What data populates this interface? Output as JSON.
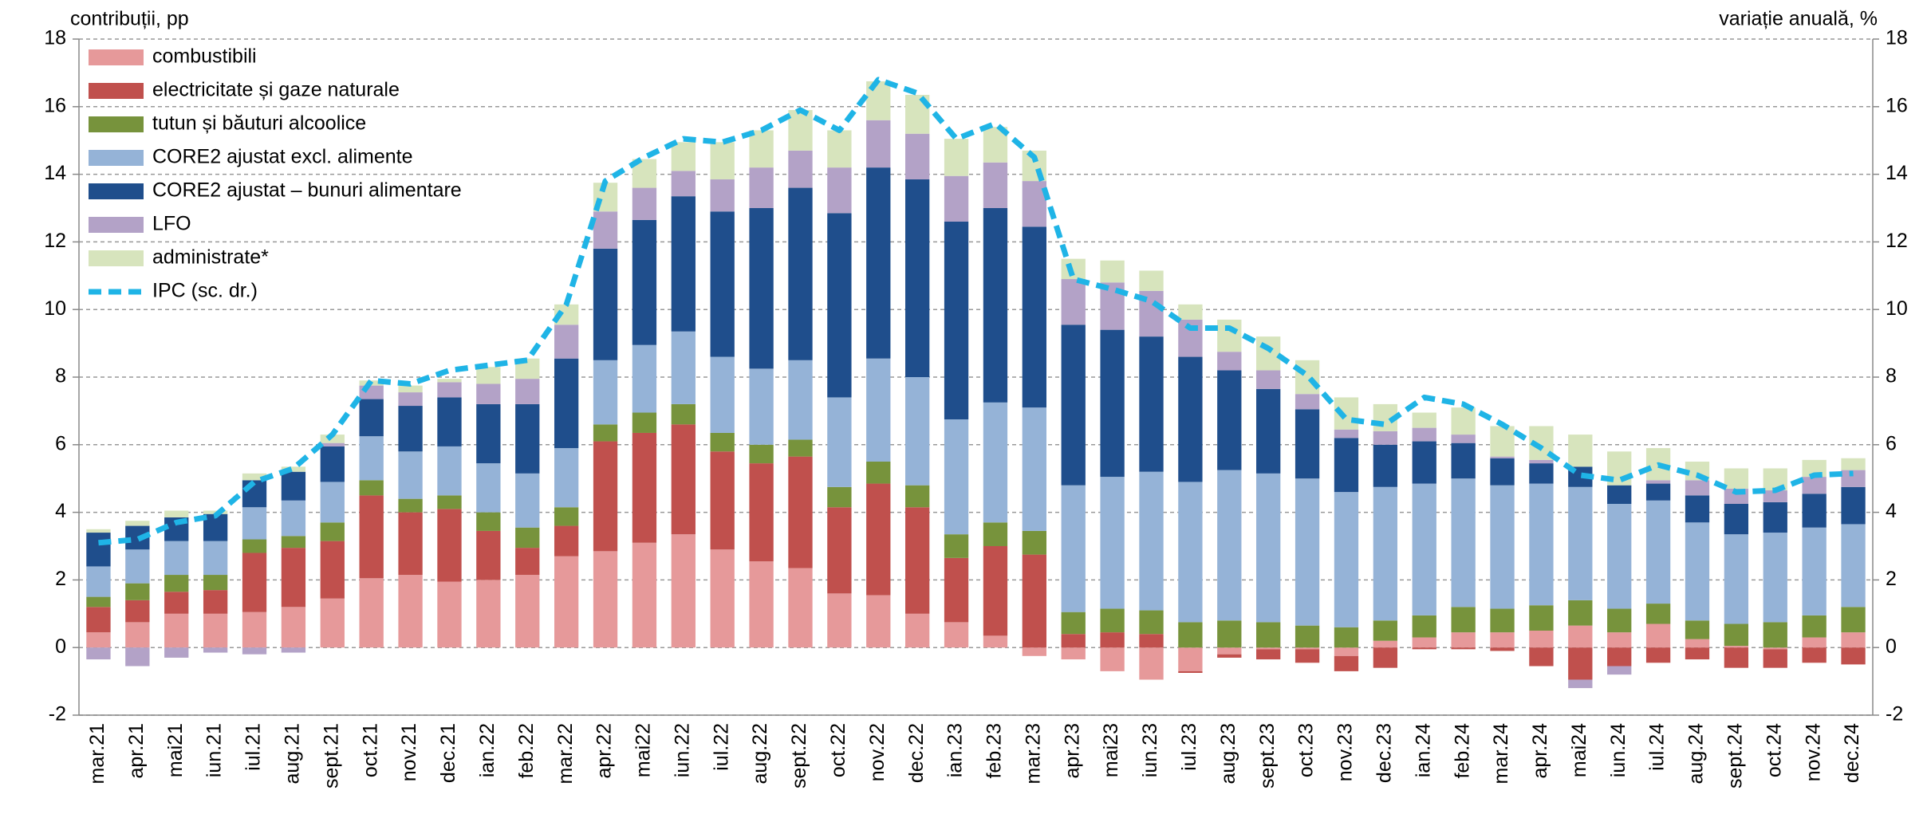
{
  "chart_data": {
    "type": "bar",
    "stacked": true,
    "y_label": "contribuții, pp",
    "y2_label": "variație anuală, %",
    "categories": [
      "mar.21",
      "apr.21",
      "mai21",
      "iun.21",
      "iul.21",
      "aug.21",
      "sept.21",
      "oct.21",
      "nov.21",
      "dec.21",
      "ian.22",
      "feb.22",
      "mar.22",
      "apr.22",
      "mai22",
      "iun.22",
      "iul.22",
      "aug.22",
      "sept.22",
      "oct.22",
      "nov.22",
      "dec.22",
      "ian.23",
      "feb.23",
      "mar.23",
      "apr.23",
      "mai23",
      "iun.23",
      "iul.23",
      "aug.23",
      "sept.23",
      "oct.23",
      "nov.23",
      "dec.23",
      "ian.24",
      "feb.24",
      "mar.24",
      "apr.24",
      "mai24",
      "iun.24",
      "iul.24",
      "aug.24",
      "sept.24",
      "oct.24",
      "nov.24",
      "dec.24"
    ],
    "series": [
      {
        "name": "combustibili",
        "color": "#e6999a",
        "values": [
          0.45,
          0.75,
          1.0,
          1.0,
          1.05,
          1.2,
          1.45,
          2.05,
          2.15,
          1.95,
          2.0,
          2.15,
          2.7,
          2.85,
          3.1,
          3.35,
          2.9,
          2.55,
          2.35,
          1.6,
          1.55,
          1.0,
          0.75,
          0.35,
          -0.25,
          -0.35,
          -0.7,
          -0.95,
          -0.7,
          -0.2,
          -0.05,
          -0.05,
          -0.25,
          0.2,
          0.3,
          0.45,
          0.45,
          0.5,
          0.65,
          0.45,
          0.7,
          0.25,
          0.05,
          -0.05,
          0.3,
          0.45
        ]
      },
      {
        "name": "electricitate și gaze naturale",
        "color": "#c0504d",
        "values": [
          0.75,
          0.65,
          0.65,
          0.7,
          1.75,
          1.75,
          1.7,
          2.45,
          1.85,
          2.15,
          1.45,
          0.8,
          0.9,
          3.25,
          3.25,
          3.25,
          2.9,
          2.9,
          3.3,
          2.55,
          3.3,
          3.15,
          1.9,
          2.65,
          2.75,
          0.4,
          0.45,
          0.4,
          -0.05,
          -0.1,
          -0.3,
          -0.4,
          -0.45,
          -0.6,
          -0.05,
          -0.05,
          -0.1,
          -0.55,
          -0.95,
          -0.55,
          -0.45,
          -0.35,
          -0.6,
          -0.55,
          -0.45,
          -0.5
        ]
      },
      {
        "name": "tutun  și băuturi alcoolice",
        "color": "#77933c",
        "values": [
          0.3,
          0.5,
          0.5,
          0.45,
          0.4,
          0.35,
          0.55,
          0.45,
          0.4,
          0.4,
          0.55,
          0.6,
          0.55,
          0.5,
          0.6,
          0.6,
          0.55,
          0.55,
          0.5,
          0.6,
          0.65,
          0.65,
          0.7,
          0.7,
          0.7,
          0.65,
          0.7,
          0.7,
          0.75,
          0.8,
          0.75,
          0.65,
          0.6,
          0.6,
          0.65,
          0.75,
          0.7,
          0.75,
          0.75,
          0.7,
          0.6,
          0.55,
          0.65,
          0.75,
          0.65,
          0.75
        ]
      },
      {
        "name": "CORE2 ajustat excl. alimente",
        "color": "#95b3d7",
        "values": [
          0.9,
          1.0,
          1.0,
          1.0,
          0.95,
          1.05,
          1.2,
          1.3,
          1.4,
          1.45,
          1.45,
          1.6,
          1.75,
          1.9,
          2.0,
          2.15,
          2.25,
          2.25,
          2.35,
          2.65,
          3.05,
          3.2,
          3.4,
          3.55,
          3.65,
          3.75,
          3.9,
          4.1,
          4.15,
          4.45,
          4.4,
          4.35,
          4.0,
          3.95,
          3.9,
          3.8,
          3.65,
          3.6,
          3.35,
          3.1,
          3.05,
          2.9,
          2.65,
          2.65,
          2.6,
          2.45
        ]
      },
      {
        "name": "CORE2 ajustat – bunuri alimentare",
        "color": "#1f4e8c",
        "values": [
          1.0,
          0.7,
          0.7,
          0.8,
          0.8,
          0.85,
          1.05,
          1.1,
          1.35,
          1.45,
          1.75,
          2.05,
          2.65,
          3.3,
          3.7,
          4.0,
          4.3,
          4.75,
          5.1,
          5.45,
          5.65,
          5.85,
          5.85,
          5.75,
          5.35,
          4.75,
          4.35,
          4.0,
          3.7,
          2.95,
          2.5,
          2.05,
          1.6,
          1.25,
          1.25,
          1.05,
          0.8,
          0.6,
          0.6,
          0.55,
          0.5,
          0.8,
          0.9,
          0.9,
          1.0,
          1.1
        ]
      },
      {
        "name": "LFO",
        "color": "#b3a2c7",
        "values": [
          -0.35,
          -0.55,
          -0.3,
          -0.15,
          -0.2,
          -0.15,
          0.1,
          0.4,
          0.4,
          0.45,
          0.6,
          0.75,
          1.0,
          1.1,
          0.95,
          0.75,
          0.95,
          1.2,
          1.1,
          1.35,
          1.4,
          1.35,
          1.35,
          1.35,
          1.35,
          1.35,
          1.4,
          1.35,
          1.1,
          0.55,
          0.55,
          0.45,
          0.25,
          0.4,
          0.4,
          0.25,
          0.05,
          0.1,
          -0.25,
          -0.25,
          0.1,
          0.45,
          0.45,
          0.35,
          0.5,
          0.5
        ]
      },
      {
        "name": "administrate*",
        "color": "#d7e4bd",
        "values": [
          0.1,
          0.15,
          0.2,
          0.1,
          0.2,
          0.15,
          0.25,
          0.15,
          0.2,
          0.1,
          0.5,
          0.6,
          0.6,
          0.85,
          0.85,
          0.85,
          1.1,
          1.1,
          1.2,
          1.1,
          1.15,
          1.15,
          1.1,
          1.05,
          0.9,
          0.6,
          0.65,
          0.6,
          0.45,
          0.95,
          1.0,
          1.0,
          0.95,
          0.8,
          0.45,
          0.8,
          0.9,
          1.0,
          0.95,
          1.0,
          0.95,
          0.55,
          0.6,
          0.65,
          0.5,
          0.35
        ]
      },
      {
        "name": "IPC (sc. dr.)",
        "color": "#1fb4e6",
        "type": "line",
        "dashed": true,
        "axis": "y2",
        "values": [
          3.1,
          3.2,
          3.7,
          3.9,
          4.9,
          5.3,
          6.3,
          7.9,
          7.8,
          8.2,
          8.35,
          8.5,
          10.15,
          13.8,
          14.5,
          15.05,
          14.95,
          15.3,
          15.9,
          15.3,
          16.8,
          16.4,
          15.05,
          15.5,
          14.5,
          10.9,
          10.6,
          10.25,
          9.45,
          9.45,
          8.85,
          8.05,
          6.75,
          6.6,
          7.4,
          7.2,
          6.6,
          5.9,
          5.1,
          4.95,
          5.4,
          5.1,
          4.6,
          4.65,
          5.1,
          5.15
        ]
      }
    ],
    "ylim": [
      -2,
      18
    ],
    "yticks": [
      -2,
      0,
      2,
      4,
      6,
      8,
      10,
      12,
      14,
      16,
      18
    ],
    "y2lim": [
      -2,
      18
    ],
    "y2ticks": [
      -2,
      0,
      2,
      4,
      6,
      8,
      10,
      12,
      14,
      16,
      18
    ],
    "grid": true,
    "legend": "upper left"
  }
}
